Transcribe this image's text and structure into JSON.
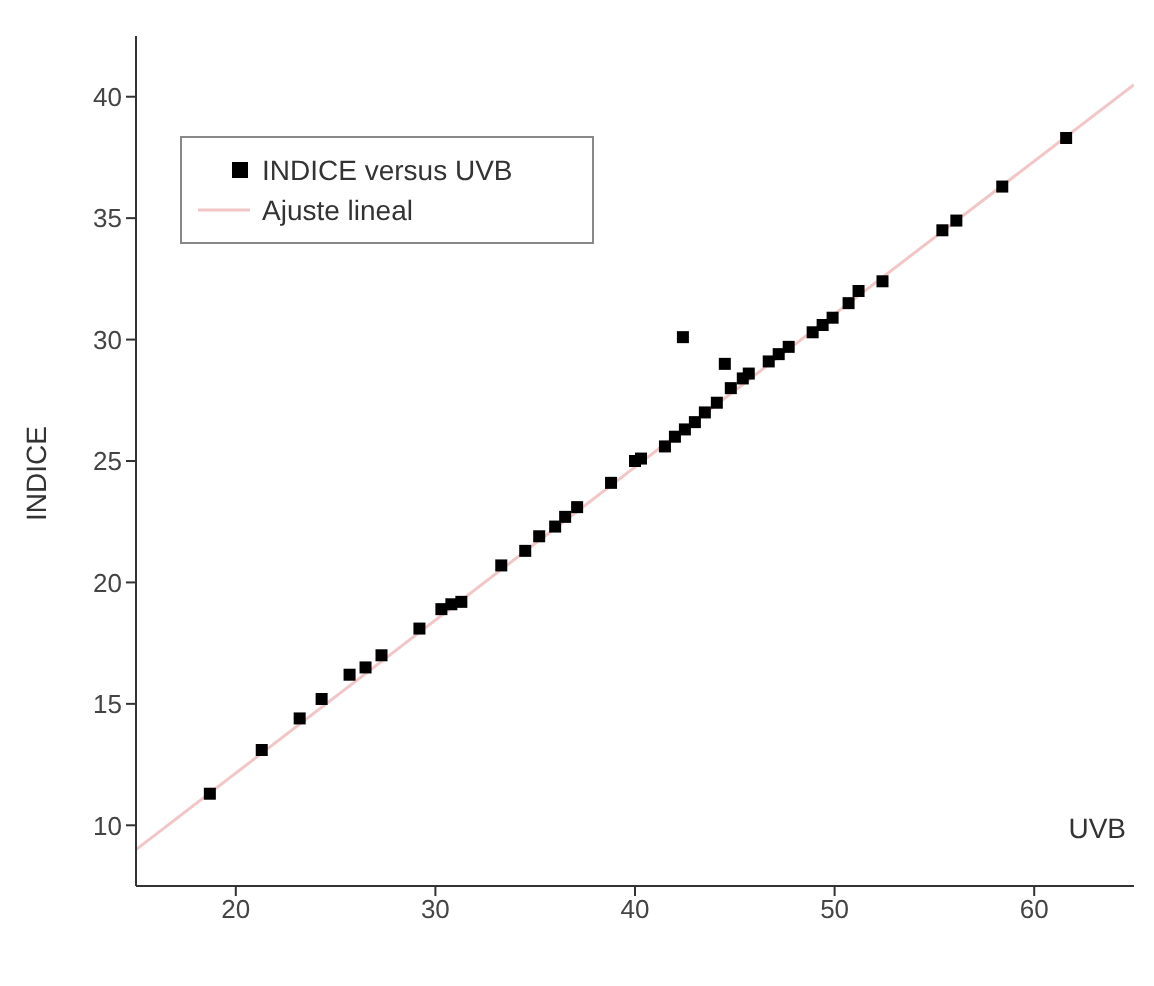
{
  "chart_data": {
    "type": "scatter",
    "xlabel": "UVB",
    "ylabel": "INDICE",
    "xlim": [
      15,
      65
    ],
    "xticks": [
      20,
      30,
      40,
      50,
      60
    ],
    "ylim": [
      7.5,
      42.5
    ],
    "yticks": [
      10,
      15,
      20,
      25,
      30,
      35,
      40
    ],
    "legend": "top left",
    "series": [
      {
        "name": "INDICE versus UVB",
        "marker": "square",
        "color": "#000000",
        "x": [
          18.7,
          21.3,
          23.2,
          24.3,
          25.7,
          26.5,
          27.3,
          29.2,
          30.3,
          30.8,
          31.3,
          33.3,
          34.5,
          35.2,
          36.0,
          36.5,
          37.1,
          38.8,
          40.0,
          40.3,
          41.5,
          42.0,
          42.5,
          43.0,
          43.5,
          44.1,
          44.8,
          45.4,
          45.7,
          46.7,
          47.2,
          47.7,
          48.9,
          49.4,
          49.9,
          50.7,
          51.2,
          52.4,
          55.4,
          56.1,
          58.4,
          61.6,
          42.4,
          44.5
        ],
        "values": [
          11.3,
          13.1,
          14.4,
          15.2,
          16.2,
          16.5,
          17.0,
          18.1,
          18.9,
          19.1,
          19.2,
          20.7,
          21.3,
          21.9,
          22.3,
          22.7,
          23.1,
          24.1,
          25.0,
          25.1,
          25.6,
          26.0,
          26.3,
          26.6,
          27.0,
          27.4,
          28.0,
          28.4,
          28.6,
          29.1,
          29.4,
          29.7,
          30.3,
          30.6,
          30.9,
          31.5,
          32.0,
          32.4,
          34.5,
          34.9,
          36.3,
          38.3,
          30.1,
          29.0
        ]
      },
      {
        "name": "Ajuste lineal",
        "type": "line",
        "color": "#f2c6c6",
        "x": [
          15,
          65
        ],
        "values": [
          9.0,
          40.5
        ]
      }
    ]
  }
}
